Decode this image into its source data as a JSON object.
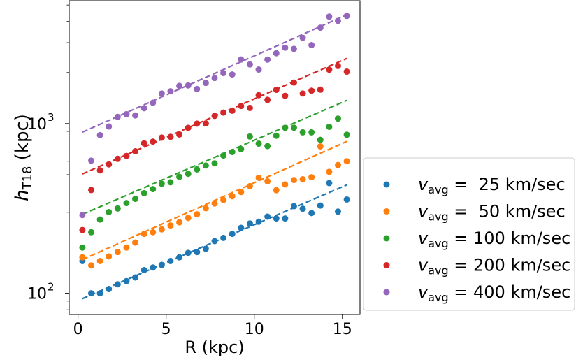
{
  "chart_data": {
    "type": "scatter",
    "title": "",
    "xlabel": "R (kpc)",
    "ylabel_main": "h",
    "ylabel_sub": "T18",
    "ylabel_unit": " (kpc)",
    "xlim": [
      -0.5,
      16.0
    ],
    "ylim": [
      75,
      5300
    ],
    "yscale": "log",
    "grid": false,
    "legend_position": "lower right, outside plot",
    "x_ticks": [
      0,
      5,
      10,
      15
    ],
    "x_tick_labels": [
      "0",
      "5",
      "10",
      "15"
    ],
    "y_ticks": [
      100,
      1000
    ],
    "y_tick_labels": [
      {
        "base": "10",
        "exp": "2"
      },
      {
        "base": "10",
        "exp": "3"
      }
    ],
    "series": [
      {
        "name": "v_avg = 25 km/sec",
        "label_main": "v",
        "label_sub": "avg",
        "label_rest": " =  25 km/sec",
        "color": "#1f77b4",
        "x": [
          0.25,
          0.75,
          1.25,
          1.75,
          2.25,
          2.75,
          3.25,
          3.75,
          4.25,
          4.75,
          5.25,
          5.75,
          6.25,
          6.75,
          7.25,
          7.75,
          8.25,
          8.75,
          9.25,
          9.75,
          10.25,
          10.75,
          11.25,
          11.75,
          12.25,
          12.75,
          13.25,
          13.75,
          14.25,
          14.75,
          15.25
        ],
        "y": [
          155,
          100,
          100,
          106,
          113,
          118,
          124,
          137,
          142,
          147,
          155,
          163,
          173,
          175,
          183,
          203,
          212,
          224,
          243,
          258,
          264,
          283,
          276,
          276,
          326,
          315,
          297,
          329,
          446,
          303,
          357
        ],
        "fit": {
          "x": [
            0.25,
            15.25
          ],
          "y": [
            93,
            435
          ]
        }
      },
      {
        "name": "v_avg = 50 km/sec",
        "label_main": "v",
        "label_sub": "avg",
        "label_rest": " =  50 km/sec",
        "color": "#ff7f0e",
        "x": [
          0.25,
          0.75,
          1.25,
          1.75,
          2.25,
          2.75,
          3.25,
          3.75,
          4.25,
          4.75,
          5.25,
          5.75,
          6.25,
          6.75,
          7.25,
          7.75,
          8.25,
          8.75,
          9.25,
          9.75,
          10.25,
          10.75,
          11.25,
          11.75,
          12.25,
          12.75,
          13.25,
          13.75,
          14.25,
          14.75,
          15.25
        ],
        "y": [
          163,
          146,
          155,
          165,
          175,
          186,
          199,
          224,
          229,
          238,
          251,
          262,
          278,
          292,
          317,
          338,
          355,
          373,
          395,
          428,
          480,
          457,
          405,
          438,
          465,
          470,
          483,
          734,
          520,
          570,
          600
        ],
        "fit": {
          "x": [
            0.25,
            15.25
          ],
          "y": [
            158,
            785
          ]
        }
      },
      {
        "name": "v_avg = 100 km/sec",
        "label_main": "v",
        "label_sub": "avg",
        "label_rest": " = 100 km/sec",
        "color": "#2ca02c",
        "x": [
          0.25,
          0.75,
          1.25,
          1.75,
          2.25,
          2.75,
          3.25,
          3.75,
          4.25,
          4.75,
          5.25,
          5.75,
          6.25,
          6.75,
          7.25,
          7.75,
          8.25,
          8.75,
          9.25,
          9.75,
          10.25,
          10.75,
          11.25,
          11.75,
          12.25,
          12.75,
          13.25,
          13.75,
          14.25,
          14.75,
          15.25
        ],
        "y": [
          186,
          229,
          272,
          301,
          316,
          340,
          360,
          389,
          411,
          442,
          451,
          486,
          506,
          537,
          566,
          583,
          648,
          680,
          707,
          839,
          762,
          737,
          848,
          945,
          946,
          888,
          888,
          802,
          957,
          1070,
          860
        ],
        "fit": {
          "x": [
            0.25,
            15.25
          ],
          "y": [
            292,
            1370
          ]
        }
      },
      {
        "name": "v_avg = 200 km/sec",
        "label_main": "v",
        "label_sub": "avg",
        "label_rest": " = 200 km/sec",
        "color": "#d62728",
        "x": [
          0.25,
          0.75,
          1.25,
          1.75,
          2.25,
          2.75,
          3.25,
          3.75,
          4.25,
          4.75,
          5.25,
          5.75,
          6.25,
          6.75,
          7.25,
          7.75,
          8.25,
          8.75,
          9.25,
          9.75,
          10.25,
          10.75,
          11.25,
          11.75,
          12.25,
          12.75,
          13.25,
          13.75,
          14.25,
          14.75,
          15.25
        ],
        "y": [
          236,
          406,
          530,
          575,
          620,
          645,
          687,
          765,
          783,
          827,
          836,
          863,
          944,
          1000,
          1002,
          1110,
          1161,
          1191,
          1270,
          1237,
          1470,
          1380,
          1581,
          1458,
          1746,
          1504,
          1563,
          1585,
          2080,
          2186,
          2023
        ],
        "fit": {
          "x": [
            0.25,
            15.25
          ],
          "y": [
            505,
            2420
          ]
        }
      },
      {
        "name": "v_avg = 400 km/sec",
        "label_main": "v",
        "label_sub": "avg",
        "label_rest": " = 400 km/sec",
        "color": "#9467bd",
        "x": [
          0.25,
          0.75,
          1.25,
          1.75,
          2.25,
          2.75,
          3.25,
          3.75,
          4.25,
          4.75,
          5.25,
          5.75,
          6.25,
          6.75,
          7.25,
          7.75,
          8.25,
          8.75,
          9.25,
          9.75,
          10.25,
          10.75,
          11.25,
          11.75,
          12.25,
          12.75,
          13.25,
          13.75,
          14.25,
          14.75,
          15.25
        ],
        "y": [
          289,
          605,
          855,
          961,
          1096,
          1137,
          1117,
          1232,
          1327,
          1504,
          1550,
          1668,
          1678,
          1598,
          1737,
          1856,
          1984,
          1947,
          2386,
          2232,
          2082,
          2382,
          2598,
          2802,
          2758,
          3204,
          2902,
          3676,
          4271,
          4031,
          4310
        ],
        "fit": {
          "x": [
            0.25,
            15.25
          ],
          "y": [
            890,
            4380
          ]
        }
      }
    ]
  }
}
